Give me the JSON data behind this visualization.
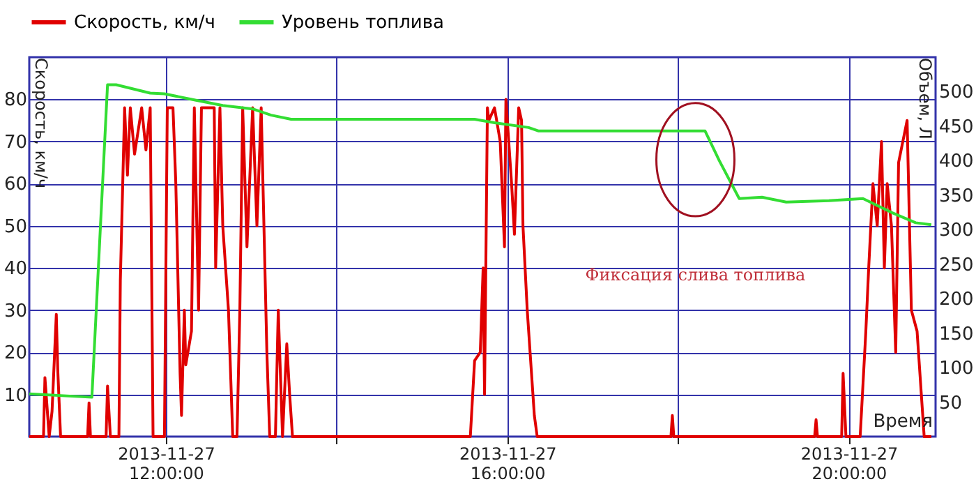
{
  "chart_data": {
    "type": "line",
    "xlabel": "Время",
    "ylabel": "Скорость, км/ч",
    "y2label": "Объем, Л",
    "xlim": [
      "2013-11-27T10:24",
      "2013-11-27T21:01"
    ],
    "xticks": [
      {
        "value": "2013-11-27T12:00",
        "label": "2013-11-27 12:00:00"
      },
      {
        "value": "2013-11-27T14:00",
        "label": null
      },
      {
        "value": "2013-11-27T16:00",
        "label": "2013-11-27 16:00:00"
      },
      {
        "value": "2013-11-27T18:00",
        "label": null
      },
      {
        "value": "2013-11-27T20:00",
        "label": "2013-11-27 20:00:00"
      }
    ],
    "ylim": [
      0,
      90
    ],
    "yticks": [
      10,
      20,
      30,
      40,
      50,
      60,
      70,
      80
    ],
    "y2lim": [
      0,
      550
    ],
    "y2ticks": [
      50,
      100,
      150,
      200,
      250,
      300,
      350,
      400,
      450,
      500
    ],
    "grid": true,
    "legend": "top",
    "line_style": "solid",
    "marker": "none",
    "annotations": [
      "Фиксация слива топлива"
    ],
    "series": [
      {
        "name": "Скорость, км/ч",
        "color": "#e00000",
        "x": [
          "2013-11-27T10:24",
          "2013-11-27T10:34",
          "2013-11-27T10:35",
          "2013-11-27T10:38",
          "2013-11-27T10:40",
          "2013-11-27T10:43",
          "2013-11-27T10:44",
          "2013-11-27T10:46",
          "2013-11-27T11:05",
          "2013-11-27T11:06",
          "2013-11-27T11:07",
          "2013-11-27T11:18",
          "2013-11-27T11:19",
          "2013-11-27T11:21",
          "2013-11-27T11:27",
          "2013-11-27T11:28",
          "2013-11-27T11:31",
          "2013-11-27T11:33",
          "2013-11-27T11:35",
          "2013-11-27T11:38",
          "2013-11-27T11:43",
          "2013-11-27T11:46",
          "2013-11-27T11:49",
          "2013-11-27T11:51",
          "2013-11-27T11:59",
          "2013-11-27T12:01",
          "2013-11-27T12:05",
          "2013-11-27T12:07",
          "2013-11-27T12:10",
          "2013-11-27T12:11",
          "2013-11-27T12:13",
          "2013-11-27T12:14",
          "2013-11-27T12:18",
          "2013-11-27T12:20",
          "2013-11-27T12:23",
          "2013-11-27T12:25",
          "2013-11-27T12:34",
          "2013-11-27T12:35",
          "2013-11-27T12:38",
          "2013-11-27T12:40",
          "2013-11-27T12:44",
          "2013-11-27T12:47",
          "2013-11-27T12:50",
          "2013-11-27T12:52",
          "2013-11-27T12:54",
          "2013-11-27T12:57",
          "2013-11-27T13:01",
          "2013-11-27T13:04",
          "2013-11-27T13:07",
          "2013-11-27T13:11",
          "2013-11-27T13:13",
          "2013-11-27T13:17",
          "2013-11-27T13:19",
          "2013-11-27T13:22",
          "2013-11-27T13:25",
          "2013-11-27T13:27",
          "2013-11-27T13:29",
          "2013-11-27T15:34",
          "2013-11-27T15:37",
          "2013-11-27T15:41",
          "2013-11-27T15:43",
          "2013-11-27T15:44",
          "2013-11-27T15:46",
          "2013-11-27T15:47",
          "2013-11-27T15:51",
          "2013-11-27T15:55",
          "2013-11-27T15:58",
          "2013-11-27T15:59",
          "2013-11-27T16:03",
          "2013-11-27T16:05",
          "2013-11-27T16:08",
          "2013-11-27T16:10",
          "2013-11-27T16:11",
          "2013-11-27T16:14",
          "2013-11-27T16:17",
          "2013-11-27T16:19",
          "2013-11-27T16:21",
          "2013-11-27T17:55",
          "2013-11-27T17:56",
          "2013-11-27T17:57",
          "2013-11-27T19:36",
          "2013-11-27T19:37",
          "2013-11-27T19:38",
          "2013-11-27T19:55",
          "2013-11-27T19:56",
          "2013-11-27T19:58",
          "2013-11-27T20:08",
          "2013-11-27T20:12",
          "2013-11-27T20:14",
          "2013-11-27T20:17",
          "2013-11-27T20:20",
          "2013-11-27T20:23",
          "2013-11-27T20:25",
          "2013-11-27T20:27",
          "2013-11-27T20:30",
          "2013-11-27T20:33",
          "2013-11-27T20:35",
          "2013-11-27T20:38",
          "2013-11-27T20:41",
          "2013-11-27T20:44",
          "2013-11-27T20:48",
          "2013-11-27T20:52",
          "2013-11-27T20:53",
          "2013-11-27T20:58"
        ],
        "values": [
          0,
          0,
          14,
          0,
          6,
          29,
          16,
          0,
          0,
          8,
          0,
          0,
          12,
          0,
          0,
          37,
          78,
          62,
          78,
          67,
          78,
          68,
          78,
          0,
          0,
          78,
          78,
          60,
          15,
          5,
          30,
          17,
          25,
          78,
          30,
          78,
          78,
          40,
          78,
          50,
          30,
          0,
          0,
          30,
          78,
          45,
          78,
          50,
          78,
          20,
          0,
          0,
          30,
          0,
          22,
          10,
          0,
          0,
          18,
          20,
          40,
          10,
          78,
          75,
          78,
          70,
          45,
          80,
          60,
          48,
          78,
          75,
          50,
          30,
          15,
          5,
          0,
          0,
          5,
          0,
          0,
          4,
          0,
          0,
          15,
          0,
          0,
          25,
          40,
          60,
          50,
          70,
          40,
          60,
          50,
          20,
          65,
          70,
          75,
          30,
          25,
          5,
          0,
          0
        ]
      },
      {
        "name": "Уровень топлива",
        "color": "#33dd33",
        "axis": "y2",
        "x": [
          "2013-11-27T10:24",
          "2013-11-27T11:08",
          "2013-11-27T11:19",
          "2013-11-27T11:25",
          "2013-11-27T11:49",
          "2013-11-27T11:59",
          "2013-11-27T12:20",
          "2013-11-27T12:40",
          "2013-11-27T13:01",
          "2013-11-27T13:14",
          "2013-11-27T13:28",
          "2013-11-27T14:08",
          "2013-11-27T15:37",
          "2013-11-27T15:51",
          "2013-11-27T16:15",
          "2013-11-27T16:22",
          "2013-11-27T18:04",
          "2013-11-27T18:19",
          "2013-11-27T18:29",
          "2013-11-27T18:43",
          "2013-11-27T18:59",
          "2013-11-27T19:16",
          "2013-11-27T19:46",
          "2013-11-27T20:10",
          "2013-11-27T20:30",
          "2013-11-27T20:47",
          "2013-11-27T20:58"
        ],
        "values": [
          62,
          57,
          510,
          510,
          498,
          497,
          488,
          480,
          475,
          466,
          460,
          460,
          460,
          455,
          448,
          443,
          443,
          443,
          400,
          345,
          347,
          340,
          342,
          345,
          325,
          310,
          307
        ]
      }
    ]
  }
}
